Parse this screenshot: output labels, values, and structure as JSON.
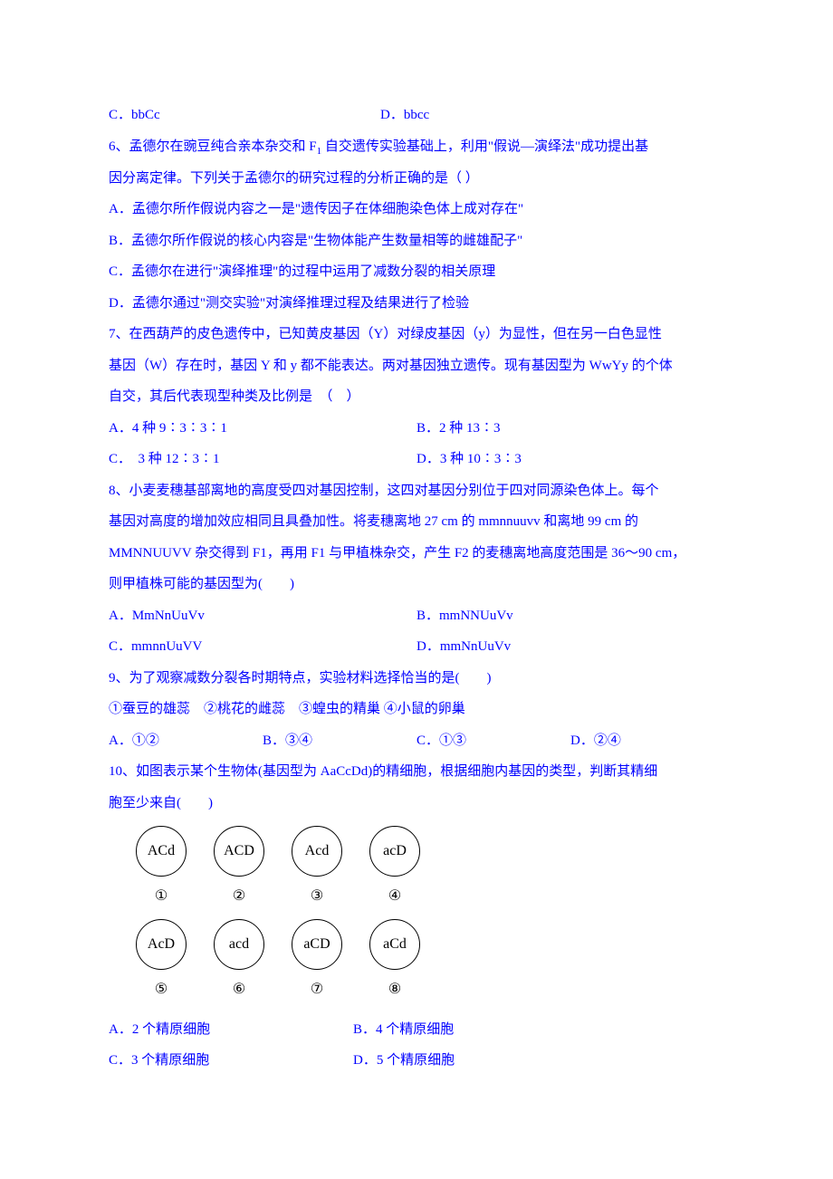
{
  "q5": {
    "optC": "C．bbCc",
    "optD": "D．bbcc"
  },
  "q6": {
    "stem1": "6、孟德尔在豌豆纯合亲本杂交和 F",
    "stem_sub": "1",
    "stem2": " 自交遗传实验基础上，利用\"假说—演绎法\"成功提出基",
    "stem3": "因分离定律。下列关于孟德尔的研究过程的分析正确的是（ ）",
    "optA": "A．孟德尔所作假说内容之一是\"遗传因子在体细胞染色体上成对存在\"",
    "optB": "B．孟德尔所作假说的核心内容是\"生物体能产生数量相等的雌雄配子\"",
    "optC": "C．孟德尔在进行\"演绎推理\"的过程中运用了减数分裂的相关原理",
    "optD": "D．孟德尔通过\"测交实验\"对演绎推理过程及结果进行了检验"
  },
  "q7": {
    "stem1": "7、在西葫芦的皮色遗传中，已知黄皮基因（Y）对绿皮基因（y）为显性，但在另一白色显性",
    "stem2": "基因（W）存在时，基因 Y 和 y 都不能表达。两对基因独立遗传。现有基因型为 WwYy 的个体",
    "stem3": "自交，其后代表现型种类及比例是　（　）",
    "optA": "A．4 种 9∶3∶3∶1",
    "optB": "B．2 种 13∶3",
    "optC": "C．　3 种 12∶3∶1",
    "optD": "D．3 种 10∶3∶3"
  },
  "q8": {
    "stem1": "8、小麦麦穗基部离地的高度受四对基因控制，这四对基因分别位于四对同源染色体上。每个",
    "stem2": "基因对高度的增加效应相同且具叠加性。将麦穗离地 27 cm 的 mmnnuuvv 和离地 99 cm 的",
    "stem3": "MMNNUUVV 杂交得到 F1，再用 F1 与甲植株杂交，产生 F2 的麦穗离地高度范围是 36～90 cm，",
    "stem4": "则甲植株可能的基因型为(　　)",
    "optA": "A．MmNnUuVv",
    "optB": "B．mmNNUuVv",
    "optC": "C．mmnnUuVV",
    "optD": "D．mmNnUuVv"
  },
  "q9": {
    "stem1": "9、为了观察减数分裂各时期特点，实验材料选择恰当的是(　　)",
    "stem2": "①蚕豆的雄蕊　②桃花的雌蕊　③蝗虫的精巢 ④小鼠的卵巢",
    "optA": "A．①②",
    "optB": "B．③④",
    "optC": "C．①③",
    "optD": "D．②④"
  },
  "q10": {
    "stem1": "10、如图表示某个生物体(基因型为 AaCcDd)的精细胞，根据细胞内基因的类型，判断其精细",
    "stem2": "胞至少来自(　　)",
    "cells": [
      {
        "g": "ACd",
        "n": "①"
      },
      {
        "g": "ACD",
        "n": "②"
      },
      {
        "g": "Acd",
        "n": "③"
      },
      {
        "g": "acD",
        "n": "④"
      },
      {
        "g": "AcD",
        "n": "⑤"
      },
      {
        "g": "acd",
        "n": "⑥"
      },
      {
        "g": "aCD",
        "n": "⑦"
      },
      {
        "g": "aCd",
        "n": "⑧"
      }
    ],
    "optA": "A．2 个精原细胞",
    "optB": "B．4 个精原细胞",
    "optC": "C．3 个精原细胞",
    "optD": "D．5 个精原细胞"
  },
  "colors": {
    "text": "#0000ff",
    "diagram": "#000000",
    "background": "#ffffff"
  }
}
